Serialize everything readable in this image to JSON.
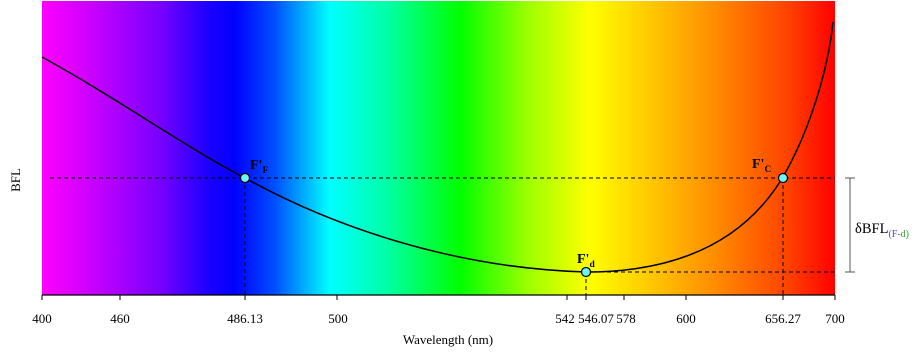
{
  "chart_data": {
    "type": "line",
    "xlabel": "Wavelength (nm)",
    "ylabel": "BFL",
    "xlim": [
      400,
      700
    ],
    "x_ticks": [
      400,
      460,
      486.13,
      500,
      542,
      546.07,
      578,
      600,
      656.27,
      700
    ],
    "grid": false,
    "marked_points": [
      {
        "main": "F'",
        "sub": "F",
        "wavelength": 486.13
      },
      {
        "main": "F'",
        "sub": "d",
        "wavelength": 546.07
      },
      {
        "main": "F'",
        "sub": "C",
        "wavelength": 656.27
      }
    ],
    "annotation": {
      "main": "δBFL",
      "sub_parts": [
        {
          "text": "(F",
          "color": "#6a3fd0"
        },
        {
          "text": "-d)",
          "color": "#3c9a3c"
        }
      ]
    },
    "colors": {
      "curve": "#000000",
      "point_fill": "#6ff5f5",
      "bracket": "#555555"
    },
    "spectrum_colors": [
      "#ff00ff",
      "#c000ff",
      "#7800ff",
      "#2000ff",
      "#0000ff",
      "#0050ff",
      "#00ffff",
      "#00ffa0",
      "#00ff00",
      "#a0ff00",
      "#ffff00",
      "#ffc800",
      "#ff8c00",
      "#ff4000",
      "#ff0000"
    ]
  }
}
